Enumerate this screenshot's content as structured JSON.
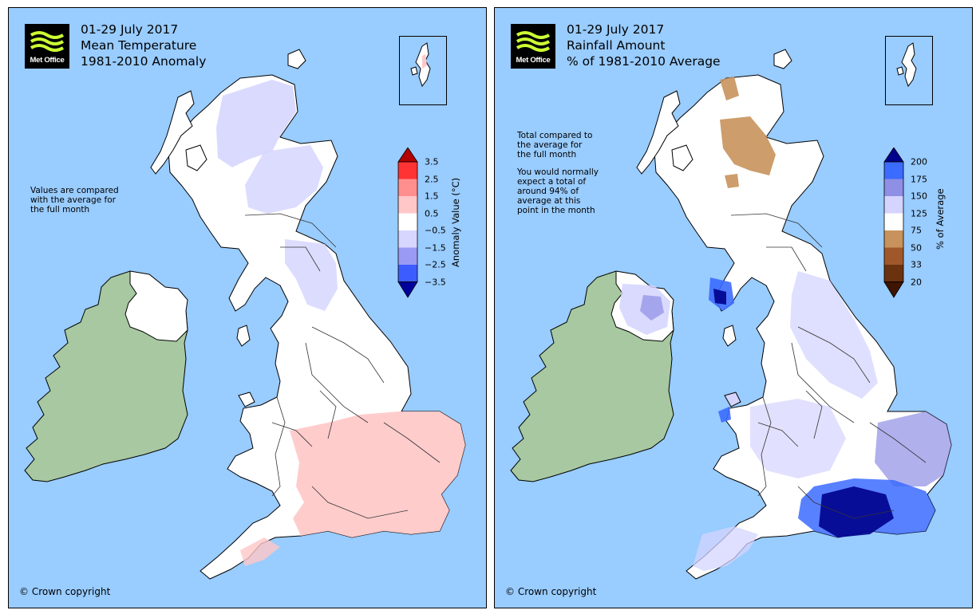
{
  "logo_text": "Met Office",
  "colors": {
    "sea": "#99ccff",
    "ireland_land": "#a7c8a0",
    "border": "#000000"
  },
  "panels": [
    {
      "title_lines": [
        "01-29 July 2017",
        "Mean Temperature",
        "1981-2010 Anomaly"
      ],
      "note_lines": [
        "Values are compared",
        "with the average for",
        "the full month"
      ],
      "copyright": "© Crown copyright",
      "legend": {
        "title": "Anomaly Value (°C)",
        "ticks": [
          "3.5",
          "2.5",
          "1.5",
          "0.5",
          "−0.5",
          "−1.5",
          "−2.5",
          "−3.5"
        ],
        "colors": [
          "#b30000",
          "#ff3333",
          "#ff8f8f",
          "#ffc7c7",
          "#ffffff",
          "#d6d6ff",
          "#9a9af5",
          "#3d5cff",
          "#00009c"
        ]
      }
    },
    {
      "title_lines": [
        "01-29 July 2017",
        "Rainfall Amount",
        "% of 1981-2010 Average"
      ],
      "note_lines_1": [
        "Total compared to",
        "the average for",
        "the full month"
      ],
      "note_lines_2": [
        "You would normally",
        "expect a total of",
        "around 94% of",
        "average at this",
        "point in the month"
      ],
      "copyright": "© Crown copyright",
      "legend": {
        "title": "% of Average",
        "ticks": [
          "200",
          "175",
          "150",
          "125",
          "75",
          "50",
          "33",
          "20"
        ],
        "colors": [
          "#00008c",
          "#3b6bff",
          "#8f8fe6",
          "#d4d4ff",
          "#ffffff",
          "#c8925c",
          "#a0582a",
          "#6b3210",
          "#3d1500"
        ]
      }
    }
  ]
}
